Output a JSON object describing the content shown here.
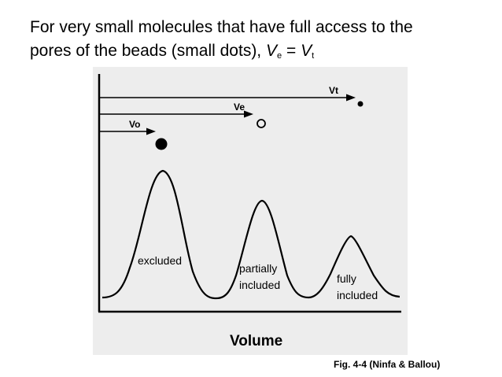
{
  "title": {
    "line1": "For very small molecules that have full access to the",
    "line2_prefix": "pores of the beads (small dots), ",
    "v_symbol": "V",
    "e_sub": "e",
    "equals": " = ",
    "t_sub": "t"
  },
  "diagram": {
    "arrows": [
      {
        "id": "vo",
        "label": "Vo",
        "marker": "large filled dot"
      },
      {
        "id": "ve",
        "label": "Ve",
        "marker": "open circle"
      },
      {
        "id": "vt",
        "label": "Vt",
        "marker": "small filled dot"
      }
    ],
    "peaks": [
      {
        "id": "excluded",
        "lines": [
          "excluded"
        ]
      },
      {
        "id": "partially-included",
        "lines": [
          "partially",
          "included"
        ]
      },
      {
        "id": "fully-included",
        "lines": [
          "fully",
          "included"
        ]
      }
    ],
    "xlabel": "Volume"
  },
  "caption": "Fig. 4-4 (Ninfa & Ballou)",
  "colors": {
    "text": "#000000",
    "figure_bg": "#ededed",
    "line": "#000000"
  }
}
